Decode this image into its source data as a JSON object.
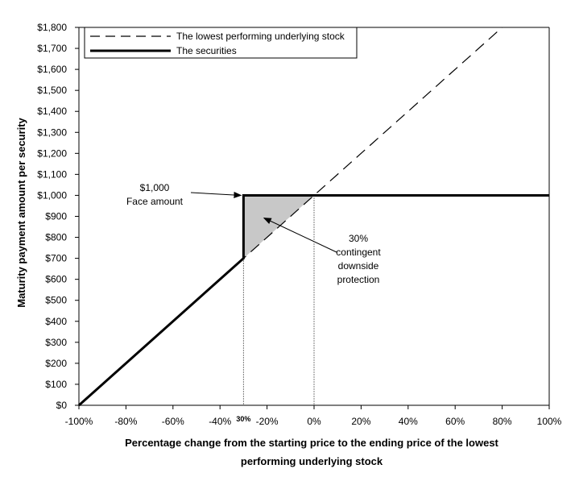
{
  "chart_data": {
    "type": "line",
    "title": "",
    "xlabel_lines": [
      "Percentage change from the starting price to the ending price of the lowest",
      "performing underlying stock"
    ],
    "ylabel": "Maturity payment amount per security",
    "xlim": [
      -100,
      100
    ],
    "ylim": [
      0,
      1800
    ],
    "x_ticks": [
      -100,
      -80,
      -60,
      -40,
      -20,
      0,
      20,
      40,
      60,
      80,
      100
    ],
    "x_tick_labels": [
      "-100%",
      "-80%",
      "-60%",
      "-40%",
      "-20%",
      "0%",
      "20%",
      "40%",
      "60%",
      "80%",
      "100%"
    ],
    "y_ticks": [
      0,
      100,
      200,
      300,
      400,
      500,
      600,
      700,
      800,
      900,
      1000,
      1100,
      1200,
      1300,
      1400,
      1500,
      1600,
      1700,
      1800
    ],
    "y_tick_labels": [
      "$0",
      "$100",
      "$200",
      "$300",
      "$400",
      "$500",
      "$600",
      "$700",
      "$800",
      "$900",
      "$1,000",
      "$1,100",
      "$1,200",
      "$1,300",
      "$1,400",
      "$1,500",
      "$1,600",
      "$1,700",
      "$1,800"
    ],
    "grid": false,
    "legend_position": "top-left",
    "series": [
      {
        "name": "The lowest performing underlying stock",
        "style": "dashed",
        "color": "#000000",
        "points": [
          [
            -100,
            0
          ],
          [
            80,
            1800
          ]
        ]
      },
      {
        "name": "The securities",
        "style": "solid-thick",
        "color": "#000000",
        "points": [
          [
            -100,
            0
          ],
          [
            -30,
            700
          ],
          [
            -30,
            1000
          ],
          [
            100,
            1000
          ]
        ]
      }
    ],
    "shaded_region": {
      "color": "#c8c8c8",
      "points": [
        [
          -30,
          700
        ],
        [
          -30,
          1000
        ],
        [
          0,
          1000
        ]
      ]
    },
    "vertical_markers": [
      {
        "x": -30,
        "label": "30%"
      },
      {
        "x": 0,
        "label": ""
      }
    ],
    "annotations": [
      {
        "id": "face",
        "lines": [
          "$1,000",
          "Face amount"
        ],
        "arrow_to": [
          -30,
          1000
        ]
      },
      {
        "id": "protection",
        "lines": [
          "30%",
          "contingent",
          "downside",
          "protection"
        ],
        "arrow_to": [
          -22,
          900
        ]
      }
    ]
  }
}
